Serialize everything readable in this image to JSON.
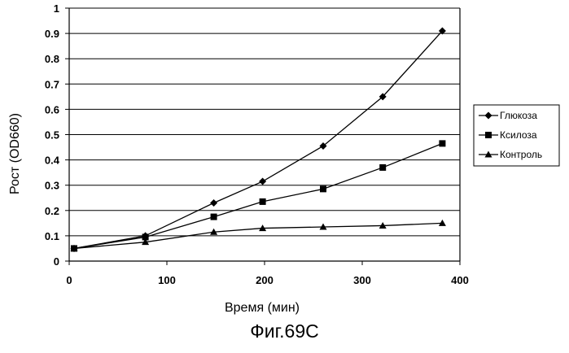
{
  "chart_data": {
    "type": "line",
    "xlabel": "Время (мин)",
    "ylabel": "Рост (OD660)",
    "xlim": [
      0,
      400
    ],
    "ylim": [
      0,
      1
    ],
    "xticks": [
      "0",
      "100",
      "200",
      "300",
      "400"
    ],
    "yticks": [
      "0",
      "0.1",
      "0.2",
      "0.3",
      "0.4",
      "0.5",
      "0.6",
      "0.7",
      "0.8",
      "0.9",
      "1"
    ],
    "grid": "horizontal",
    "legend_position": "right",
    "series": [
      {
        "name": "Глюкоза",
        "marker": "diamond",
        "x": [
          5,
          78,
          148,
          198,
          260,
          321,
          382
        ],
        "y": [
          0.05,
          0.1,
          0.23,
          0.315,
          0.455,
          0.65,
          0.91
        ]
      },
      {
        "name": "Ксилоза",
        "marker": "square",
        "x": [
          5,
          78,
          148,
          198,
          260,
          321,
          382
        ],
        "y": [
          0.05,
          0.095,
          0.175,
          0.235,
          0.285,
          0.37,
          0.465
        ]
      },
      {
        "name": "Контроль",
        "marker": "triangle",
        "x": [
          5,
          78,
          148,
          198,
          260,
          321,
          382
        ],
        "y": [
          0.05,
          0.075,
          0.115,
          0.13,
          0.135,
          0.14,
          0.15
        ]
      }
    ]
  },
  "caption": "Фиг.69C"
}
